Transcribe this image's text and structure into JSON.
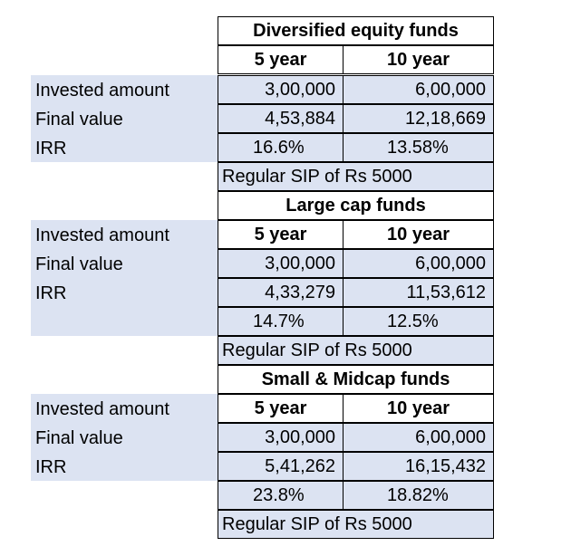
{
  "sections": [
    {
      "title": "Diversified equity funds",
      "col_headers": [
        "5 year",
        "10 year"
      ],
      "row_labels": [
        "Invested amount",
        "Final value",
        "IRR"
      ],
      "rows": [
        [
          "3,00,000",
          "6,00,000"
        ],
        [
          "4,53,884",
          "12,18,669"
        ],
        [
          "16.6%",
          "13.58%"
        ]
      ],
      "note": "Regular SIP of Rs 5000"
    },
    {
      "title": "Large cap funds",
      "col_headers": [
        "5 year",
        "10 year"
      ],
      "row_labels": [
        "Invested amount",
        "Final value",
        "IRR"
      ],
      "rows": [
        [
          "3,00,000",
          "6,00,000"
        ],
        [
          "4,33,279",
          "11,53,612"
        ],
        [
          "14.7%",
          "12.5%"
        ]
      ],
      "note": "Regular SIP of Rs 5000"
    },
    {
      "title": "Small & Midcap funds",
      "col_headers": [
        "5 year",
        "10 year"
      ],
      "row_labels": [
        "Invested amount",
        "Final value",
        "IRR"
      ],
      "rows": [
        [
          "3,00,000",
          "6,00,000"
        ],
        [
          "5,41,262",
          "16,15,432"
        ],
        [
          "23.8%",
          "18.82%"
        ]
      ],
      "note": "Regular SIP of Rs 5000"
    }
  ]
}
